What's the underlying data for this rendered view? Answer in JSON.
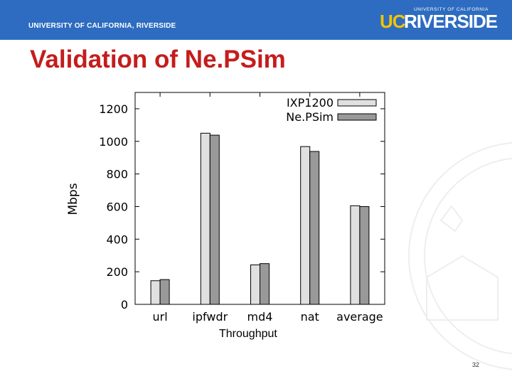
{
  "header": {
    "university": "UNIVERSITY OF CALIFORNIA, RIVERSIDE",
    "logo_small": "UNIVERSITY OF CALIFORNIA",
    "logo_uc": "UC",
    "logo_rest": "RIVERSIDE"
  },
  "slide": {
    "title": "Validation of Ne.PSim",
    "caption": "Throughput",
    "page_number": "32"
  },
  "colors": {
    "header_bg": "#2d6cc0",
    "title": "#c41d1d",
    "logo_uc": "#f2c400",
    "series_1": "#e0e0e0",
    "series_2": "#999999"
  },
  "chart_data": {
    "type": "bar",
    "categories": [
      "url",
      "ipfwdr",
      "md4",
      "nat",
      "average"
    ],
    "series": [
      {
        "name": "IXP1200",
        "values": [
          145,
          1050,
          242,
          968,
          605
        ]
      },
      {
        "name": "Ne.PSim",
        "values": [
          152,
          1038,
          250,
          938,
          600
        ]
      }
    ],
    "ylabel": "Mbps",
    "xlabel": "",
    "ylim": [
      0,
      1300
    ],
    "yticks": [
      0,
      200,
      400,
      600,
      800,
      1000,
      1200
    ],
    "grid": false,
    "legend": "top-right"
  }
}
